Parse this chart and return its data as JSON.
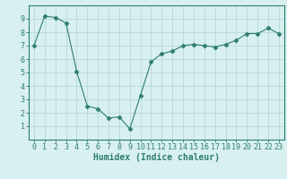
{
  "x": [
    0,
    1,
    2,
    3,
    4,
    5,
    6,
    7,
    8,
    9,
    10,
    11,
    12,
    13,
    14,
    15,
    16,
    17,
    18,
    19,
    20,
    21,
    22,
    23
  ],
  "y": [
    7.0,
    9.2,
    9.1,
    8.7,
    5.1,
    2.5,
    2.3,
    1.6,
    1.7,
    0.8,
    3.3,
    5.8,
    6.4,
    6.6,
    7.0,
    7.1,
    7.0,
    6.9,
    7.1,
    7.4,
    7.9,
    7.9,
    8.3,
    7.9
  ],
  "line_color": "#2e7d6e",
  "marker": "D",
  "marker_size": 2.5,
  "bg_color": "#d8f0f0",
  "grid_color": "#b8d8d8",
  "xlabel": "Humidex (Indice chaleur)",
  "ylim": [
    0,
    10
  ],
  "xlim": [
    -0.5,
    23.5
  ],
  "yticks": [
    1,
    2,
    3,
    4,
    5,
    6,
    7,
    8,
    9
  ],
  "xticks": [
    0,
    1,
    2,
    3,
    4,
    5,
    6,
    7,
    8,
    9,
    10,
    11,
    12,
    13,
    14,
    15,
    16,
    17,
    18,
    19,
    20,
    21,
    22,
    23
  ],
  "tick_color": "#2e7d6e",
  "label_color": "#2e7d6e",
  "spine_color": "#2e7d6e",
  "font_size": 6,
  "xlabel_font_size": 7
}
